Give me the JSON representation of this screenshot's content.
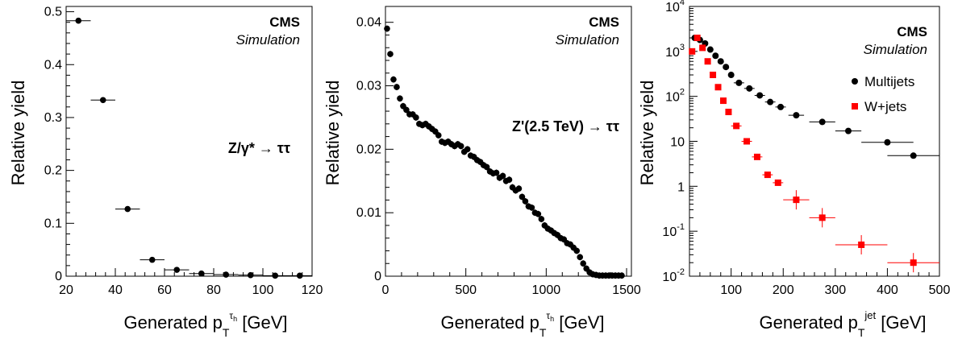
{
  "chart_data": [
    {
      "type": "scatter",
      "label_cms": "CMS",
      "label_sim": "Simulation",
      "process": "Z/γ* → ττ",
      "xlabel": "Generated p_T^{τ_h} [GeV]",
      "ylabel": "Relative yield",
      "xlim": [
        20,
        120
      ],
      "ylim": [
        0,
        0.51
      ],
      "xticks": [
        "20",
        "40",
        "60",
        "80",
        "100",
        "120"
      ],
      "yticks": [
        "0",
        "0.1",
        "0.2",
        "0.3",
        "0.4",
        "0.5"
      ],
      "color": "#000000",
      "points": [
        {
          "x": 25,
          "y": 0.483,
          "xerr": 5
        },
        {
          "x": 35,
          "y": 0.333,
          "xerr": 5
        },
        {
          "x": 45,
          "y": 0.127,
          "xerr": 5
        },
        {
          "x": 55,
          "y": 0.031,
          "xerr": 5
        },
        {
          "x": 65,
          "y": 0.012,
          "xerr": 5
        },
        {
          "x": 75,
          "y": 0.005,
          "xerr": 5
        },
        {
          "x": 85,
          "y": 0.003,
          "xerr": 5
        },
        {
          "x": 95,
          "y": 0.002,
          "xerr": 5
        },
        {
          "x": 105,
          "y": 0.001,
          "xerr": 5
        },
        {
          "x": 115,
          "y": 0.001,
          "xerr": 5
        }
      ]
    },
    {
      "type": "scatter",
      "label_cms": "CMS",
      "label_sim": "Simulation",
      "process": "Z'(2.5 TeV) → ττ",
      "xlabel": "Generated p_T^{τ_h} [GeV]",
      "ylabel": "Relative yield",
      "xlim": [
        0,
        1530
      ],
      "ylim": [
        0,
        0.0425
      ],
      "xticks": [
        "0",
        "500",
        "1000",
        "1500"
      ],
      "yticks": [
        "0",
        "0.01",
        "0.02",
        "0.03",
        "0.04"
      ],
      "color": "#000000",
      "points": [
        {
          "x": 10,
          "y": 0.039
        },
        {
          "x": 30,
          "y": 0.035
        },
        {
          "x": 50,
          "y": 0.031
        },
        {
          "x": 70,
          "y": 0.0298
        },
        {
          "x": 90,
          "y": 0.028
        },
        {
          "x": 110,
          "y": 0.0268
        },
        {
          "x": 130,
          "y": 0.0262
        },
        {
          "x": 150,
          "y": 0.0255
        },
        {
          "x": 170,
          "y": 0.0255
        },
        {
          "x": 190,
          "y": 0.025
        },
        {
          "x": 210,
          "y": 0.024
        },
        {
          "x": 230,
          "y": 0.0238
        },
        {
          "x": 250,
          "y": 0.024
        },
        {
          "x": 270,
          "y": 0.0236
        },
        {
          "x": 290,
          "y": 0.0232
        },
        {
          "x": 310,
          "y": 0.0228
        },
        {
          "x": 330,
          "y": 0.0222
        },
        {
          "x": 350,
          "y": 0.0212
        },
        {
          "x": 370,
          "y": 0.021
        },
        {
          "x": 390,
          "y": 0.0212
        },
        {
          "x": 410,
          "y": 0.0208
        },
        {
          "x": 430,
          "y": 0.0205
        },
        {
          "x": 450,
          "y": 0.0208
        },
        {
          "x": 470,
          "y": 0.0205
        },
        {
          "x": 490,
          "y": 0.0196
        },
        {
          "x": 510,
          "y": 0.02
        },
        {
          "x": 530,
          "y": 0.019
        },
        {
          "x": 550,
          "y": 0.0188
        },
        {
          "x": 570,
          "y": 0.0183
        },
        {
          "x": 590,
          "y": 0.018
        },
        {
          "x": 610,
          "y": 0.0175
        },
        {
          "x": 630,
          "y": 0.0172
        },
        {
          "x": 650,
          "y": 0.0165
        },
        {
          "x": 670,
          "y": 0.0162
        },
        {
          "x": 690,
          "y": 0.0163
        },
        {
          "x": 710,
          "y": 0.0155
        },
        {
          "x": 730,
          "y": 0.0158
        },
        {
          "x": 750,
          "y": 0.015
        },
        {
          "x": 770,
          "y": 0.0152
        },
        {
          "x": 790,
          "y": 0.014
        },
        {
          "x": 810,
          "y": 0.0135
        },
        {
          "x": 830,
          "y": 0.0138
        },
        {
          "x": 850,
          "y": 0.0125
        },
        {
          "x": 870,
          "y": 0.0118
        },
        {
          "x": 890,
          "y": 0.011
        },
        {
          "x": 910,
          "y": 0.0108
        },
        {
          "x": 930,
          "y": 0.01
        },
        {
          "x": 950,
          "y": 0.0098
        },
        {
          "x": 970,
          "y": 0.009
        },
        {
          "x": 990,
          "y": 0.008
        },
        {
          "x": 1010,
          "y": 0.0075
        },
        {
          "x": 1030,
          "y": 0.0072
        },
        {
          "x": 1050,
          "y": 0.0068
        },
        {
          "x": 1070,
          "y": 0.0065
        },
        {
          "x": 1090,
          "y": 0.006
        },
        {
          "x": 1110,
          "y": 0.0058
        },
        {
          "x": 1130,
          "y": 0.0052
        },
        {
          "x": 1150,
          "y": 0.005
        },
        {
          "x": 1170,
          "y": 0.0045
        },
        {
          "x": 1190,
          "y": 0.004
        },
        {
          "x": 1210,
          "y": 0.003
        },
        {
          "x": 1230,
          "y": 0.002
        },
        {
          "x": 1250,
          "y": 0.0012
        },
        {
          "x": 1270,
          "y": 0.0006
        },
        {
          "x": 1290,
          "y": 0.0003
        },
        {
          "x": 1310,
          "y": 0.0002
        },
        {
          "x": 1330,
          "y": 0.0001
        },
        {
          "x": 1350,
          "y": 0.0001
        },
        {
          "x": 1370,
          "y": 0.0001
        },
        {
          "x": 1390,
          "y": 0.0001
        },
        {
          "x": 1410,
          "y": 0.0001
        },
        {
          "x": 1430,
          "y": 0.0001
        },
        {
          "x": 1450,
          "y": 0.0001
        },
        {
          "x": 1470,
          "y": 0.0001
        }
      ]
    },
    {
      "type": "scatter",
      "label_cms": "CMS",
      "label_sim": "Simulation",
      "xlabel": "Generated p_T^{jet} [GeV]",
      "ylabel": "Relative yield",
      "xlim": [
        20,
        500
      ],
      "ylim": [
        0.01,
        10000
      ],
      "ylog": true,
      "xticks": [
        "100",
        "200",
        "300",
        "400",
        "500"
      ],
      "yticks": [
        {
          "base": "10",
          "exp": "-2"
        },
        {
          "base": "10",
          "exp": "-1"
        },
        {
          "base": "1",
          "exp": ""
        },
        {
          "base": "10",
          "exp": ""
        },
        {
          "base": "10",
          "exp": "2"
        },
        {
          "base": "10",
          "exp": "3"
        },
        {
          "base": "10",
          "exp": "4"
        }
      ],
      "legend_position": "top-right",
      "series": [
        {
          "name": "Multijets",
          "marker": "circle",
          "color": "#000000",
          "points": [
            {
              "x": 30,
              "y": 2000,
              "xerr": 5
            },
            {
              "x": 40,
              "y": 1800,
              "xerr": 5
            },
            {
              "x": 50,
              "y": 1500,
              "xerr": 5
            },
            {
              "x": 60,
              "y": 1100,
              "xerr": 5
            },
            {
              "x": 70,
              "y": 800,
              "xerr": 5
            },
            {
              "x": 80,
              "y": 600,
              "xerr": 5
            },
            {
              "x": 90,
              "y": 450,
              "xerr": 5
            },
            {
              "x": 100,
              "y": 300,
              "xerr": 5
            },
            {
              "x": 115,
              "y": 200,
              "xerr": 10
            },
            {
              "x": 135,
              "y": 150,
              "xerr": 10
            },
            {
              "x": 155,
              "y": 105,
              "xerr": 10
            },
            {
              "x": 175,
              "y": 75,
              "xerr": 10
            },
            {
              "x": 195,
              "y": 58,
              "xerr": 10
            },
            {
              "x": 225,
              "y": 38,
              "xerr": 15
            },
            {
              "x": 275,
              "y": 27,
              "xerr": 25
            },
            {
              "x": 325,
              "y": 17,
              "xerr": 25
            },
            {
              "x": 400,
              "y": 9.5,
              "xerr": 50
            },
            {
              "x": 450,
              "y": 4.8,
              "xerr": 50
            }
          ]
        },
        {
          "name": "W+jets",
          "marker": "square",
          "color": "#ff0000",
          "points": [
            {
              "x": 25,
              "y": 1000,
              "xerr": 5
            },
            {
              "x": 35,
              "y": 2000,
              "xerr": 5
            },
            {
              "x": 45,
              "y": 1200,
              "xerr": 5
            },
            {
              "x": 55,
              "y": 600,
              "xerr": 5
            },
            {
              "x": 65,
              "y": 300,
              "xerr": 5
            },
            {
              "x": 75,
              "y": 160,
              "xerr": 5
            },
            {
              "x": 85,
              "y": 80,
              "xerr": 5
            },
            {
              "x": 95,
              "y": 45,
              "xerr": 5
            },
            {
              "x": 110,
              "y": 22,
              "xerr": 10
            },
            {
              "x": 130,
              "y": 10,
              "xerr": 10
            },
            {
              "x": 150,
              "y": 4.5,
              "xerr": 10
            },
            {
              "x": 170,
              "y": 1.8,
              "xerr": 10
            },
            {
              "x": 190,
              "y": 1.2,
              "xerr": 10
            },
            {
              "x": 225,
              "y": 0.5,
              "xerr": 25
            },
            {
              "x": 275,
              "y": 0.2,
              "xerr": 25
            },
            {
              "x": 350,
              "y": 0.05,
              "xerr": 50
            },
            {
              "x": 450,
              "y": 0.02,
              "xerr": 50
            }
          ]
        }
      ]
    }
  ]
}
